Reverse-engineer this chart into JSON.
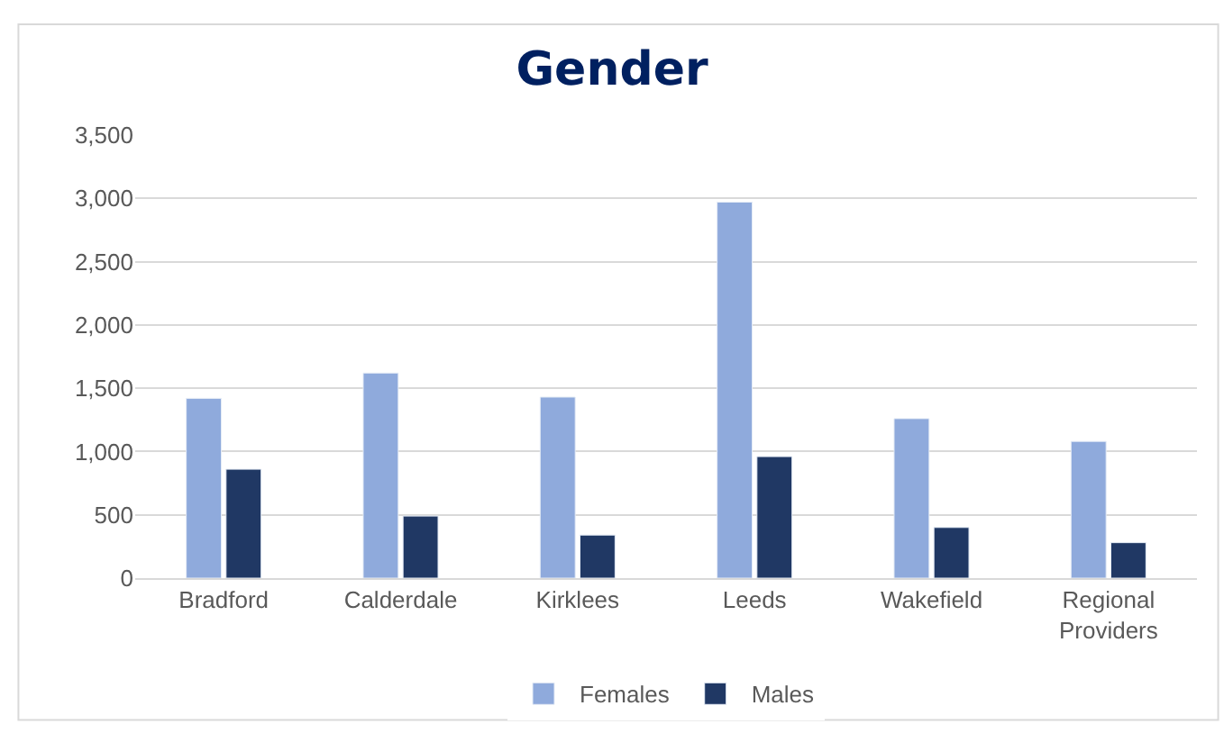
{
  "chart_data": {
    "type": "bar",
    "title": "Gender",
    "categories": [
      "Bradford",
      "Calderdale",
      "Kirklees",
      "Leeds",
      "Wakefield",
      "Regional Providers"
    ],
    "series": [
      {
        "name": "Females",
        "color": "#8faadc",
        "values": [
          1420,
          1620,
          1430,
          2970,
          1260,
          1080
        ]
      },
      {
        "name": "Males",
        "color": "#203864",
        "values": [
          860,
          490,
          340,
          960,
          400,
          280
        ]
      }
    ],
    "ylim": [
      0,
      3500
    ],
    "yticks": [
      {
        "value": 0,
        "label": "0"
      },
      {
        "value": 500,
        "label": "500"
      },
      {
        "value": 1000,
        "label": "1,000"
      },
      {
        "value": 1500,
        "label": "1,500"
      },
      {
        "value": 2000,
        "label": "2,000"
      },
      {
        "value": 2500,
        "label": "2,500"
      },
      {
        "value": 3000,
        "label": "3,000"
      },
      {
        "value": 3500,
        "label": "3,500"
      }
    ],
    "grid": "y",
    "legend": "bottom"
  }
}
